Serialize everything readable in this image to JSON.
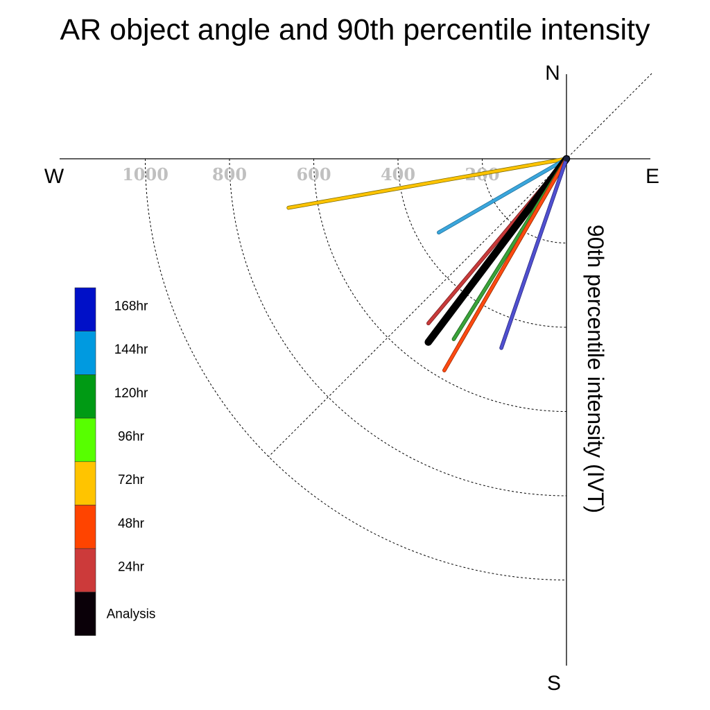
{
  "chart_data": {
    "type": "polar-vector",
    "title": "AR object angle and 90th percentile intensity",
    "ylabel": "90th percentile intensity (IVT)",
    "directions": {
      "north": "N",
      "south": "S",
      "east": "E",
      "west": "W"
    },
    "radial_ticks": [
      200,
      400,
      600,
      800,
      1000
    ],
    "radial_labels": [
      "200",
      "400",
      "600",
      "800",
      "1000"
    ],
    "rlim": [
      0,
      1200
    ],
    "grid": true,
    "legend_position": "left",
    "series": [
      {
        "name": "72hr",
        "color": "#ffc400",
        "edge": "#7a6a00",
        "magnitude": 670,
        "angle_deg": 260,
        "width": 4
      },
      {
        "name": "144hr",
        "color": "#3aa6dc",
        "edge": "#1f6f99",
        "magnitude": 350,
        "angle_deg": 240,
        "width": 4
      },
      {
        "name": "24hr",
        "color": "#c83a3a",
        "edge": "#7a1f1f",
        "magnitude": 510,
        "angle_deg": 220,
        "width": 4
      },
      {
        "name": "Analysis",
        "color": "#000000",
        "edge": "#000000",
        "magnitude": 545,
        "angle_deg": 217,
        "width": 9
      },
      {
        "name": "120hr",
        "color": "#3aa33a",
        "edge": "#1a601a",
        "magnitude": 505,
        "angle_deg": 212,
        "width": 4
      },
      {
        "name": "96hr",
        "color": "#7adf3a",
        "edge": "#3a8a1a",
        "magnitude": 510,
        "angle_deg": 210,
        "width": 4
      },
      {
        "name": "48hr",
        "color": "#ff4a12",
        "edge": "#a02a00",
        "magnitude": 580,
        "angle_deg": 210,
        "width": 4
      },
      {
        "name": "168hr",
        "color": "#5050d0",
        "edge": "#2a2a80",
        "magnitude": 475,
        "angle_deg": 199,
        "width": 4
      }
    ],
    "legend": [
      {
        "label": "168hr",
        "color": "#0010c8"
      },
      {
        "label": "144hr",
        "color": "#009ae0"
      },
      {
        "label": "120hr",
        "color": "#009a14"
      },
      {
        "label": "96hr",
        "color": "#57ff00"
      },
      {
        "label": "72hr",
        "color": "#ffc400"
      },
      {
        "label": "48hr",
        "color": "#ff4400"
      },
      {
        "label": "24hr",
        "color": "#cc3a3a"
      },
      {
        "label": "Analysis",
        "color": "#0a0008"
      }
    ]
  }
}
